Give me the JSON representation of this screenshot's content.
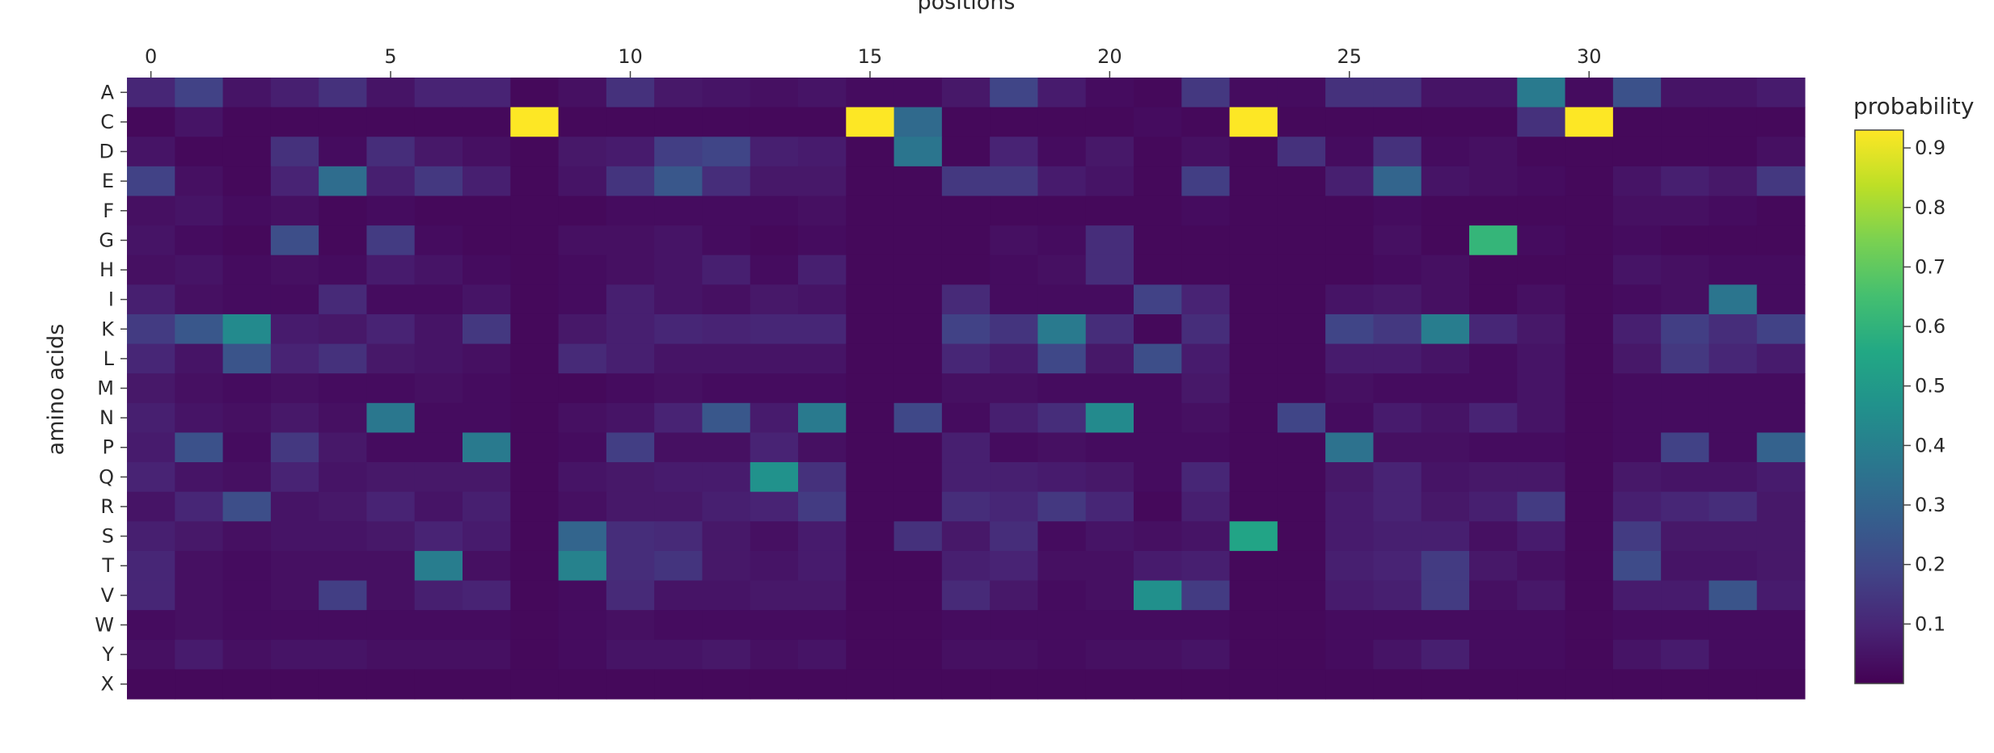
{
  "chart_data": {
    "type": "heatmap",
    "title": "",
    "xlabel": "positions",
    "ylabel": "amino acids",
    "colorbar_title": "probability",
    "colorscale": "viridis",
    "zlim": [
      0.0,
      0.93
    ],
    "x_tick_labels": [
      "0",
      "5",
      "10",
      "15",
      "20",
      "25",
      "30"
    ],
    "x_tick_values": [
      0,
      5,
      10,
      15,
      20,
      25,
      30
    ],
    "colorbar_tick_labels": [
      "0.1",
      "0.2",
      "0.3",
      "0.4",
      "0.5",
      "0.6",
      "0.7",
      "0.8",
      "0.9"
    ],
    "colorbar_tick_values": [
      0.1,
      0.2,
      0.3,
      0.4,
      0.5,
      0.6,
      0.7,
      0.8,
      0.9
    ],
    "x": [
      0,
      1,
      2,
      3,
      4,
      5,
      6,
      7,
      8,
      9,
      10,
      11,
      12,
      13,
      14,
      15,
      16,
      17,
      18,
      19,
      20,
      21,
      22,
      23,
      24,
      25,
      26,
      27,
      28,
      29,
      30,
      31,
      32,
      33,
      34
    ],
    "y": [
      "A",
      "C",
      "D",
      "E",
      "F",
      "G",
      "H",
      "I",
      "K",
      "L",
      "M",
      "N",
      "P",
      "Q",
      "R",
      "S",
      "T",
      "V",
      "W",
      "Y",
      "X"
    ],
    "z": [
      [
        0.1,
        0.18,
        0.05,
        0.08,
        0.13,
        0.05,
        0.09,
        0.09,
        0.02,
        0.04,
        0.13,
        0.06,
        0.05,
        0.04,
        0.05,
        0.03,
        0.03,
        0.06,
        0.19,
        0.07,
        0.03,
        0.02,
        0.15,
        0.03,
        0.03,
        0.13,
        0.13,
        0.05,
        0.05,
        0.38,
        0.03,
        0.23,
        0.05,
        0.05,
        0.07
      ],
      [
        0.02,
        0.05,
        0.02,
        0.02,
        0.02,
        0.02,
        0.02,
        0.02,
        0.93,
        0.02,
        0.02,
        0.02,
        0.02,
        0.02,
        0.02,
        0.93,
        0.32,
        0.02,
        0.02,
        0.02,
        0.02,
        0.03,
        0.02,
        0.93,
        0.02,
        0.02,
        0.02,
        0.02,
        0.02,
        0.13,
        0.93,
        0.02,
        0.02,
        0.02,
        0.02
      ],
      [
        0.05,
        0.02,
        0.02,
        0.13,
        0.03,
        0.12,
        0.06,
        0.04,
        0.02,
        0.06,
        0.07,
        0.17,
        0.19,
        0.08,
        0.07,
        0.02,
        0.36,
        0.02,
        0.09,
        0.03,
        0.06,
        0.02,
        0.04,
        0.02,
        0.13,
        0.03,
        0.13,
        0.03,
        0.04,
        0.02,
        0.02,
        0.02,
        0.02,
        0.02,
        0.04
      ],
      [
        0.18,
        0.04,
        0.02,
        0.09,
        0.33,
        0.08,
        0.15,
        0.08,
        0.02,
        0.05,
        0.14,
        0.25,
        0.12,
        0.06,
        0.06,
        0.02,
        0.02,
        0.15,
        0.15,
        0.07,
        0.05,
        0.02,
        0.17,
        0.02,
        0.02,
        0.08,
        0.3,
        0.05,
        0.04,
        0.03,
        0.02,
        0.05,
        0.08,
        0.06,
        0.15
      ],
      [
        0.04,
        0.05,
        0.03,
        0.04,
        0.02,
        0.03,
        0.02,
        0.02,
        0.02,
        0.02,
        0.03,
        0.03,
        0.03,
        0.03,
        0.04,
        0.02,
        0.02,
        0.02,
        0.02,
        0.02,
        0.02,
        0.02,
        0.03,
        0.02,
        0.02,
        0.02,
        0.03,
        0.02,
        0.02,
        0.02,
        0.02,
        0.04,
        0.04,
        0.03,
        0.02
      ],
      [
        0.05,
        0.03,
        0.02,
        0.22,
        0.02,
        0.16,
        0.03,
        0.02,
        0.02,
        0.04,
        0.04,
        0.05,
        0.03,
        0.02,
        0.03,
        0.02,
        0.02,
        0.02,
        0.04,
        0.03,
        0.12,
        0.02,
        0.02,
        0.02,
        0.02,
        0.02,
        0.04,
        0.02,
        0.61,
        0.03,
        0.02,
        0.03,
        0.02,
        0.02,
        0.02
      ],
      [
        0.04,
        0.05,
        0.03,
        0.04,
        0.03,
        0.07,
        0.05,
        0.03,
        0.02,
        0.03,
        0.04,
        0.05,
        0.08,
        0.03,
        0.08,
        0.02,
        0.02,
        0.02,
        0.03,
        0.04,
        0.12,
        0.02,
        0.02,
        0.02,
        0.02,
        0.02,
        0.03,
        0.04,
        0.02,
        0.02,
        0.02,
        0.05,
        0.04,
        0.03,
        0.03
      ],
      [
        0.08,
        0.04,
        0.03,
        0.03,
        0.11,
        0.03,
        0.03,
        0.05,
        0.02,
        0.03,
        0.08,
        0.05,
        0.04,
        0.06,
        0.05,
        0.02,
        0.02,
        0.11,
        0.03,
        0.03,
        0.03,
        0.18,
        0.09,
        0.02,
        0.02,
        0.05,
        0.06,
        0.04,
        0.02,
        0.04,
        0.02,
        0.03,
        0.04,
        0.36,
        0.03
      ],
      [
        0.16,
        0.25,
        0.44,
        0.07,
        0.06,
        0.09,
        0.05,
        0.15,
        0.02,
        0.06,
        0.08,
        0.1,
        0.09,
        0.1,
        0.1,
        0.02,
        0.02,
        0.18,
        0.14,
        0.38,
        0.12,
        0.02,
        0.12,
        0.02,
        0.02,
        0.19,
        0.15,
        0.39,
        0.1,
        0.06,
        0.02,
        0.08,
        0.17,
        0.12,
        0.18
      ],
      [
        0.1,
        0.05,
        0.24,
        0.09,
        0.13,
        0.06,
        0.05,
        0.04,
        0.02,
        0.11,
        0.08,
        0.05,
        0.05,
        0.05,
        0.05,
        0.02,
        0.02,
        0.1,
        0.07,
        0.2,
        0.06,
        0.22,
        0.07,
        0.02,
        0.02,
        0.07,
        0.07,
        0.05,
        0.03,
        0.05,
        0.02,
        0.06,
        0.15,
        0.1,
        0.07
      ],
      [
        0.06,
        0.04,
        0.03,
        0.04,
        0.03,
        0.03,
        0.04,
        0.03,
        0.02,
        0.02,
        0.03,
        0.04,
        0.03,
        0.03,
        0.03,
        0.02,
        0.02,
        0.04,
        0.04,
        0.03,
        0.03,
        0.03,
        0.06,
        0.02,
        0.02,
        0.04,
        0.03,
        0.03,
        0.03,
        0.05,
        0.02,
        0.03,
        0.03,
        0.03,
        0.03
      ],
      [
        0.08,
        0.05,
        0.04,
        0.06,
        0.04,
        0.37,
        0.03,
        0.03,
        0.02,
        0.04,
        0.05,
        0.09,
        0.25,
        0.07,
        0.38,
        0.02,
        0.2,
        0.03,
        0.08,
        0.12,
        0.44,
        0.03,
        0.04,
        0.02,
        0.19,
        0.03,
        0.07,
        0.05,
        0.09,
        0.05,
        0.02,
        0.03,
        0.03,
        0.03,
        0.03
      ],
      [
        0.07,
        0.23,
        0.03,
        0.15,
        0.06,
        0.03,
        0.03,
        0.38,
        0.02,
        0.03,
        0.17,
        0.04,
        0.04,
        0.09,
        0.04,
        0.02,
        0.02,
        0.08,
        0.03,
        0.04,
        0.03,
        0.03,
        0.03,
        0.02,
        0.02,
        0.35,
        0.04,
        0.04,
        0.03,
        0.03,
        0.02,
        0.03,
        0.18,
        0.03,
        0.29
      ],
      [
        0.09,
        0.05,
        0.04,
        0.09,
        0.05,
        0.06,
        0.06,
        0.06,
        0.02,
        0.05,
        0.06,
        0.07,
        0.07,
        0.47,
        0.13,
        0.02,
        0.02,
        0.08,
        0.08,
        0.07,
        0.06,
        0.03,
        0.1,
        0.02,
        0.02,
        0.06,
        0.09,
        0.05,
        0.06,
        0.06,
        0.02,
        0.06,
        0.05,
        0.05,
        0.07
      ],
      [
        0.05,
        0.1,
        0.22,
        0.05,
        0.06,
        0.09,
        0.05,
        0.08,
        0.02,
        0.04,
        0.06,
        0.06,
        0.08,
        0.09,
        0.16,
        0.02,
        0.02,
        0.12,
        0.1,
        0.15,
        0.1,
        0.02,
        0.08,
        0.02,
        0.02,
        0.07,
        0.09,
        0.06,
        0.08,
        0.16,
        0.02,
        0.08,
        0.1,
        0.12,
        0.06
      ],
      [
        0.08,
        0.06,
        0.04,
        0.05,
        0.05,
        0.06,
        0.09,
        0.07,
        0.02,
        0.3,
        0.12,
        0.11,
        0.06,
        0.04,
        0.07,
        0.02,
        0.13,
        0.06,
        0.12,
        0.03,
        0.05,
        0.04,
        0.05,
        0.54,
        0.02,
        0.07,
        0.08,
        0.08,
        0.04,
        0.07,
        0.02,
        0.16,
        0.06,
        0.06,
        0.06
      ],
      [
        0.1,
        0.04,
        0.03,
        0.04,
        0.04,
        0.04,
        0.39,
        0.04,
        0.02,
        0.41,
        0.12,
        0.14,
        0.06,
        0.05,
        0.07,
        0.02,
        0.02,
        0.08,
        0.09,
        0.04,
        0.04,
        0.07,
        0.08,
        0.02,
        0.02,
        0.08,
        0.09,
        0.16,
        0.06,
        0.04,
        0.02,
        0.21,
        0.05,
        0.05,
        0.06
      ],
      [
        0.1,
        0.04,
        0.03,
        0.04,
        0.17,
        0.04,
        0.08,
        0.09,
        0.02,
        0.03,
        0.11,
        0.05,
        0.05,
        0.06,
        0.06,
        0.02,
        0.02,
        0.11,
        0.06,
        0.03,
        0.04,
        0.46,
        0.16,
        0.02,
        0.02,
        0.07,
        0.08,
        0.16,
        0.04,
        0.06,
        0.02,
        0.07,
        0.07,
        0.24,
        0.07
      ],
      [
        0.03,
        0.04,
        0.03,
        0.03,
        0.03,
        0.03,
        0.03,
        0.03,
        0.02,
        0.03,
        0.04,
        0.03,
        0.03,
        0.03,
        0.03,
        0.02,
        0.02,
        0.03,
        0.03,
        0.03,
        0.03,
        0.03,
        0.03,
        0.02,
        0.02,
        0.03,
        0.03,
        0.03,
        0.03,
        0.03,
        0.02,
        0.03,
        0.03,
        0.03,
        0.03
      ],
      [
        0.04,
        0.07,
        0.04,
        0.05,
        0.05,
        0.04,
        0.04,
        0.04,
        0.02,
        0.03,
        0.05,
        0.05,
        0.06,
        0.04,
        0.05,
        0.02,
        0.02,
        0.04,
        0.04,
        0.03,
        0.04,
        0.04,
        0.05,
        0.02,
        0.02,
        0.03,
        0.05,
        0.08,
        0.03,
        0.03,
        0.02,
        0.05,
        0.07,
        0.03,
        0.03
      ],
      [
        0.02,
        0.02,
        0.02,
        0.02,
        0.02,
        0.02,
        0.02,
        0.02,
        0.02,
        0.02,
        0.02,
        0.02,
        0.02,
        0.02,
        0.02,
        0.02,
        0.02,
        0.02,
        0.02,
        0.02,
        0.02,
        0.02,
        0.02,
        0.02,
        0.02,
        0.02,
        0.02,
        0.02,
        0.02,
        0.02,
        0.02,
        0.02,
        0.02,
        0.02,
        0.02
      ]
    ]
  }
}
